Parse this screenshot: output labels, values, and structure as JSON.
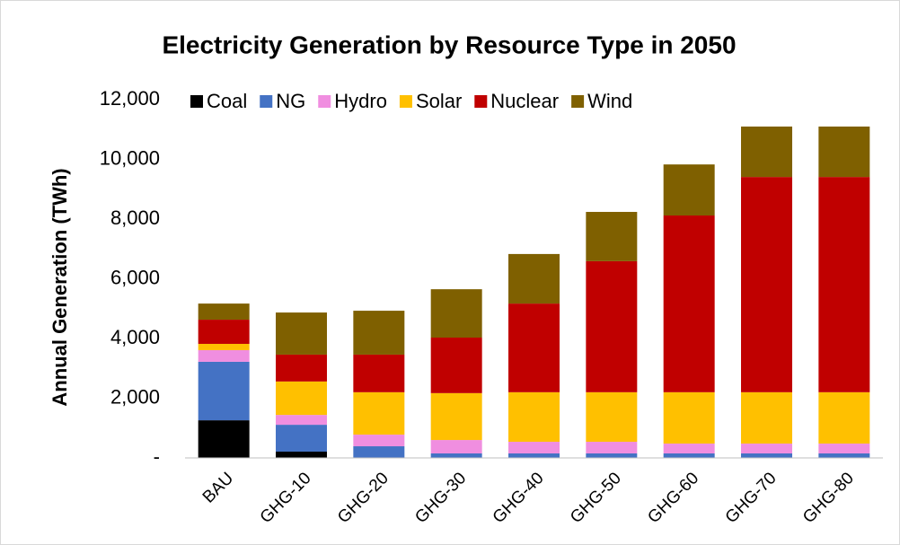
{
  "chart_data": {
    "type": "stacked_bar",
    "title": "Electricity Generation by Resource Type in 2050",
    "y_label": "Annual Generation (TWh)",
    "categories": [
      "BAU",
      "GHG-10",
      "GHG-20",
      "GHG-30",
      "GHG-40",
      "GHG-50",
      "GHG-60",
      "GHG-70",
      "GHG-80"
    ],
    "series": [
      {
        "name": "Coal",
        "color": "#000000",
        "values": [
          1260,
          210,
          0,
          0,
          0,
          0,
          0,
          0,
          0
        ]
      },
      {
        "name": "NG",
        "color": "#4472c4",
        "values": [
          1960,
          900,
          390,
          150,
          150,
          150,
          150,
          150,
          150
        ]
      },
      {
        "name": "Hydro",
        "color": "#f08ee0",
        "values": [
          390,
          330,
          390,
          450,
          390,
          390,
          330,
          330,
          330
        ]
      },
      {
        "name": "Solar",
        "color": "#ffc000",
        "values": [
          210,
          1120,
          1420,
          1570,
          1660,
          1660,
          1720,
          1720,
          1720
        ]
      },
      {
        "name": "Nuclear",
        "color": "#c00000",
        "values": [
          810,
          900,
          1260,
          1860,
          2970,
          4390,
          5920,
          7210,
          7210
        ]
      },
      {
        "name": "Wind",
        "color": "#7f6000",
        "values": [
          540,
          1410,
          1470,
          1620,
          1660,
          1650,
          1710,
          1690,
          1690
        ]
      }
    ],
    "ylim": [
      0,
      12000
    ],
    "yticks": [
      {
        "value": 0,
        "label": "-"
      },
      {
        "value": 2000,
        "label": "2,000"
      },
      {
        "value": 4000,
        "label": "4,000"
      },
      {
        "value": 6000,
        "label": "6,000"
      },
      {
        "value": 8000,
        "label": "8,000"
      },
      {
        "value": 10000,
        "label": "10,000"
      },
      {
        "value": 12000,
        "label": "12,000"
      }
    ],
    "legend": "top",
    "grid": false
  }
}
